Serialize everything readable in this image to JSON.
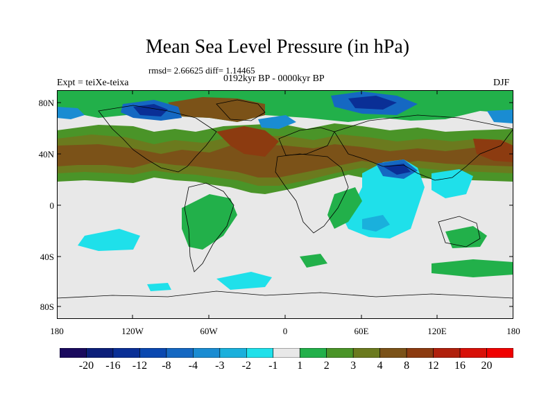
{
  "title": "Mean Sea Level Pressure (in hPa)",
  "stats": "rmsd= 2.66625 diff= 1.14465",
  "experiment": "Expt = teiXe-teixa",
  "period": "0192kyr BP - 0000kyr BP",
  "season": "DJF",
  "lat_ticks": [
    "80N",
    "40N",
    "0",
    "40S",
    "80S"
  ],
  "lon_ticks": [
    "180",
    "120W",
    "60W",
    "0",
    "60E",
    "120E",
    "180"
  ],
  "colorbar": {
    "labels": [
      "-20",
      "-16",
      "-12",
      "-8",
      "-4",
      "-3",
      "-2",
      "-1",
      "1",
      "2",
      "3",
      "4",
      "8",
      "12",
      "16",
      "20"
    ],
    "colors": [
      "#1a0a5e",
      "#0c1f7a",
      "#0a2f96",
      "#0a48b0",
      "#1568c2",
      "#1a8cd2",
      "#1ab0dc",
      "#1fe0ea",
      "#e8e8e8",
      "#22b04a",
      "#4a9428",
      "#6b7a1e",
      "#7b5218",
      "#8c3b10",
      "#b0200c",
      "#d81008",
      "#f00000"
    ]
  }
}
